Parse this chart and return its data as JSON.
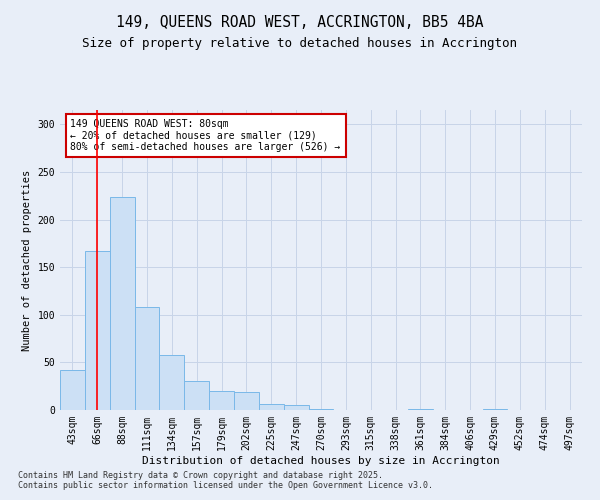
{
  "title": "149, QUEENS ROAD WEST, ACCRINGTON, BB5 4BA",
  "subtitle": "Size of property relative to detached houses in Accrington",
  "xlabel": "Distribution of detached houses by size in Accrington",
  "ylabel": "Number of detached properties",
  "categories": [
    "43sqm",
    "66sqm",
    "88sqm",
    "111sqm",
    "134sqm",
    "157sqm",
    "179sqm",
    "202sqm",
    "225sqm",
    "247sqm",
    "270sqm",
    "293sqm",
    "315sqm",
    "338sqm",
    "361sqm",
    "384sqm",
    "406sqm",
    "429sqm",
    "452sqm",
    "474sqm",
    "497sqm"
  ],
  "values": [
    42,
    167,
    224,
    108,
    58,
    30,
    20,
    19,
    6,
    5,
    1,
    0,
    0,
    0,
    1,
    0,
    0,
    1,
    0,
    0,
    0
  ],
  "bar_color": "#cce0f5",
  "bar_edge_color": "#7ab8e8",
  "grid_color": "#c8d4e8",
  "background_color": "#e8eef8",
  "red_line_x": 1.0,
  "annotation_text": "149 QUEENS ROAD WEST: 80sqm\n← 20% of detached houses are smaller (129)\n80% of semi-detached houses are larger (526) →",
  "annotation_box_color": "#ffffff",
  "annotation_box_edge": "#cc0000",
  "title_fontsize": 10.5,
  "subtitle_fontsize": 9,
  "xlabel_fontsize": 8,
  "ylabel_fontsize": 7.5,
  "tick_fontsize": 7,
  "annot_fontsize": 7,
  "footer_fontsize": 6,
  "footer_text": "Contains HM Land Registry data © Crown copyright and database right 2025.\nContains public sector information licensed under the Open Government Licence v3.0.",
  "ylim": [
    0,
    315
  ],
  "yticks": [
    0,
    50,
    100,
    150,
    200,
    250,
    300
  ]
}
